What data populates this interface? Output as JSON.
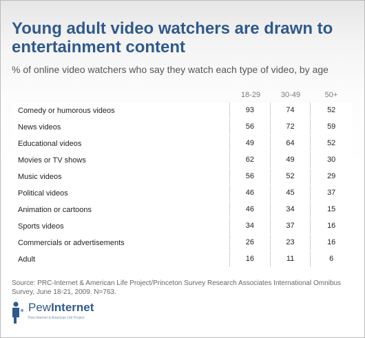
{
  "chart_data": {
    "type": "table",
    "title": "Young adult video watchers are drawn to entertainment content",
    "subtitle": "% of online video watchers who say they watch each type of video, by age",
    "columns": [
      "18-29",
      "30-49",
      "50+"
    ],
    "rows": [
      {
        "label": "Comedy or humorous videos",
        "values": [
          93,
          74,
          52
        ]
      },
      {
        "label": "News videos",
        "values": [
          56,
          72,
          59
        ]
      },
      {
        "label": "Educational videos",
        "values": [
          49,
          64,
          52
        ]
      },
      {
        "label": "Movies or TV shows",
        "values": [
          62,
          49,
          30
        ]
      },
      {
        "label": "Music videos",
        "values": [
          56,
          52,
          29
        ]
      },
      {
        "label": "Political videos",
        "values": [
          46,
          45,
          37
        ]
      },
      {
        "label": "Animation or cartoons",
        "values": [
          46,
          34,
          15
        ]
      },
      {
        "label": "Sports videos",
        "values": [
          34,
          37,
          16
        ]
      },
      {
        "label": "Commercials or advertisements",
        "values": [
          26,
          23,
          16
        ]
      },
      {
        "label": "Adult",
        "values": [
          16,
          11,
          6
        ]
      }
    ],
    "source": "Source: PRC-Internet & American Life Project/Princeton Survey Research Associates International Omnibus Survey, June 18-21, 2009. N=763."
  },
  "logo": {
    "word_light": "Pew",
    "word_bold": "Internet",
    "tagline": "Pew Internet & American Life Project"
  },
  "colors": {
    "title": "#2f5a8a",
    "row_background": "#ffffff",
    "divider": "#cfcfcf"
  },
  "icons": {
    "logo_mark": "pew-figure-icon"
  }
}
